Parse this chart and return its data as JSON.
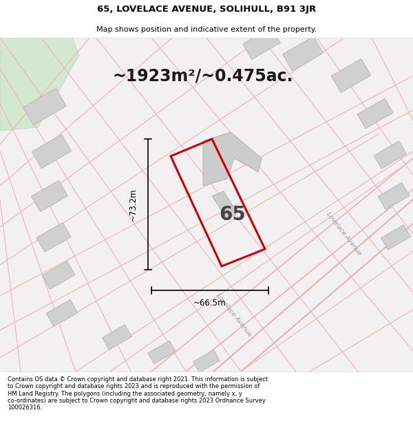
{
  "title_line1": "65, LOVELACE AVENUE, SOLIHULL, B91 3JR",
  "title_line2": "Map shows position and indicative extent of the property.",
  "area_text": "~1923m²/~0.475ac.",
  "number_label": "65",
  "dim_vertical": "~73.2m",
  "dim_horizontal": "~66.5m",
  "footer_text": "Contains OS data © Crown copyright and database right 2021. This information is subject\nto Crown copyright and database rights 2023 and is reproduced with the permission of\nHM Land Registry. The polygons (including the associated geometry, namely x, y\nco-ordinates) are subject to Crown copyright and database rights 2023 Ordnance Survey\n100026316.",
  "map_bg": "#f0eeee",
  "plot_outline_color": "#cc0000",
  "line_color": "#f0b0b0",
  "building_color": "#d0d0d0",
  "building_edge": "#bcbcbc",
  "green_color": "#d4e8d0",
  "green_edge": "#b8d4b0",
  "road_label": "Lovelace Avenue"
}
